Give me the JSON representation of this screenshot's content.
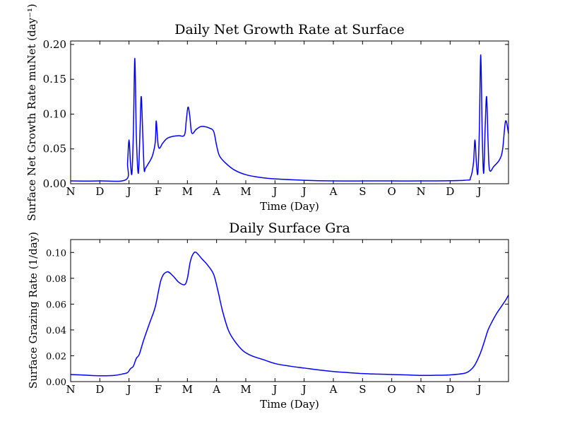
{
  "chart_data": [
    {
      "type": "line",
      "title": "Daily Net Growth Rate at Surface",
      "xlabel": "Time (Day)",
      "ylabel": "Surface Net Growth Rate muNet (day⁻¹)",
      "x_tick_labels": [
        "N",
        "D",
        "J",
        "F",
        "M",
        "A",
        "M",
        "J",
        "J",
        "A",
        "S",
        "O",
        "N",
        "D",
        "J"
      ],
      "y_ticks": [
        "0.00",
        "0.05",
        "0.10",
        "0.15",
        "0.20"
      ],
      "ylim": [
        0,
        0.205
      ],
      "xlim_months": [
        0,
        15
      ],
      "color": "#0000ff",
      "series": [
        {
          "x": [
            0,
            1,
            1.9,
            1.95,
            2.0,
            2.05,
            2.1,
            2.15,
            2.2,
            2.25,
            2.32,
            2.38,
            2.42,
            2.48,
            2.52,
            2.56,
            2.65,
            2.8,
            2.9,
            2.93,
            2.97,
            3.0,
            3.05,
            3.15,
            3.3,
            3.5,
            3.7,
            3.9,
            3.96,
            4.02,
            4.08,
            4.15,
            4.3,
            4.45,
            4.6,
            4.75,
            4.9,
            5.0,
            5.1,
            5.3,
            5.6,
            6,
            6.5,
            7,
            8,
            9,
            10,
            11,
            12,
            13.5,
            13.7,
            13.8,
            13.85,
            13.9,
            13.95,
            14.0,
            14.05,
            14.1,
            14.15,
            14.2,
            14.25,
            14.3,
            14.35,
            14.5,
            14.7,
            14.8,
            14.9,
            15.0
          ],
          "y": [
            0.004,
            0.004,
            0.006,
            0.03,
            0.063,
            0.03,
            0.015,
            0.075,
            0.18,
            0.07,
            0.015,
            0.08,
            0.125,
            0.06,
            0.02,
            0.022,
            0.028,
            0.04,
            0.06,
            0.09,
            0.07,
            0.055,
            0.051,
            0.058,
            0.065,
            0.068,
            0.069,
            0.07,
            0.09,
            0.11,
            0.098,
            0.073,
            0.078,
            0.082,
            0.082,
            0.08,
            0.075,
            0.055,
            0.04,
            0.03,
            0.02,
            0.013,
            0.009,
            0.007,
            0.005,
            0.004,
            0.004,
            0.004,
            0.004,
            0.005,
            0.009,
            0.03,
            0.063,
            0.03,
            0.015,
            0.075,
            0.185,
            0.07,
            0.015,
            0.08,
            0.125,
            0.06,
            0.02,
            0.025,
            0.035,
            0.05,
            0.09,
            0.072
          ]
        }
      ]
    },
    {
      "type": "line",
      "title": "Daily Surface Gra",
      "xlabel": "Time (Day)",
      "ylabel": "Surface Grazing Rate (1/day)",
      "x_tick_labels": [
        "N",
        "D",
        "J",
        "F",
        "M",
        "A",
        "M",
        "J",
        "J",
        "A",
        "S",
        "O",
        "N",
        "D",
        "J"
      ],
      "y_ticks": [
        "0.00",
        "0.02",
        "0.04",
        "0.06",
        "0.08",
        "0.10"
      ],
      "ylim": [
        0,
        0.11
      ],
      "xlim_months": [
        0,
        15
      ],
      "color": "#0000ff",
      "series": [
        {
          "x": [
            0,
            0.5,
            1,
            1.5,
            1.8,
            1.95,
            2.05,
            2.15,
            2.25,
            2.35,
            2.5,
            2.7,
            2.9,
            3.1,
            3.3,
            3.5,
            3.7,
            3.9,
            4.0,
            4.1,
            4.2,
            4.3,
            4.5,
            4.7,
            4.9,
            5.05,
            5.2,
            5.4,
            5.6,
            5.9,
            6.2,
            6.6,
            7,
            7.5,
            8,
            8.5,
            9,
            9.5,
            10,
            10.5,
            11,
            11.5,
            12,
            12.5,
            13,
            13.5,
            13.7,
            13.85,
            14.0,
            14.1,
            14.2,
            14.3,
            14.45,
            14.6,
            14.75,
            14.9,
            15.0
          ],
          "y": [
            0.0055,
            0.005,
            0.0045,
            0.0048,
            0.006,
            0.007,
            0.01,
            0.012,
            0.018,
            0.021,
            0.032,
            0.045,
            0.058,
            0.079,
            0.085,
            0.082,
            0.077,
            0.075,
            0.08,
            0.093,
            0.099,
            0.1,
            0.095,
            0.09,
            0.083,
            0.07,
            0.055,
            0.04,
            0.032,
            0.024,
            0.02,
            0.017,
            0.014,
            0.012,
            0.0105,
            0.009,
            0.0078,
            0.007,
            0.0062,
            0.0058,
            0.0055,
            0.0052,
            0.0048,
            0.0049,
            0.0052,
            0.0065,
            0.009,
            0.013,
            0.02,
            0.026,
            0.033,
            0.04,
            0.047,
            0.053,
            0.058,
            0.063,
            0.067
          ]
        }
      ]
    }
  ]
}
